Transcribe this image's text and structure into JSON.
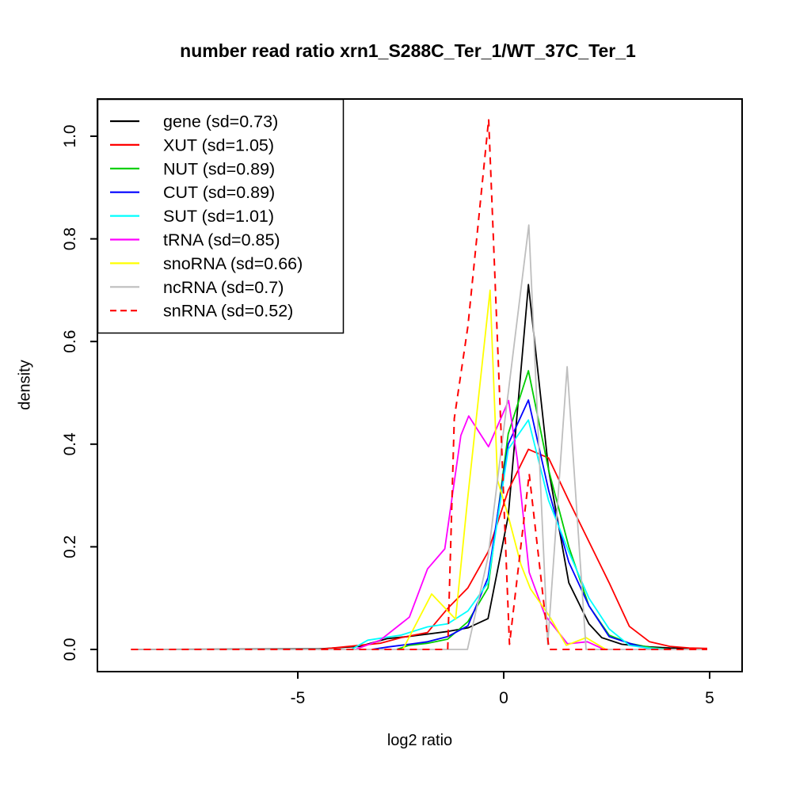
{
  "chart_data": {
    "type": "line",
    "title": "number read ratio xrn1_S288C_Ter_1/WT_37C_Ter_1",
    "xlabel": "log2 ratio",
    "ylabel": "density",
    "xlim": [
      -9.9,
      5.8
    ],
    "ylim": [
      0,
      1.07
    ],
    "x_ticks": [
      "-5",
      "0",
      "5"
    ],
    "y_ticks": [
      "0.0",
      "0.2",
      "0.4",
      "0.6",
      "0.8",
      "1.0"
    ],
    "grid": false,
    "legend_position": "top-left",
    "series": [
      {
        "name": "gene",
        "label": "gene (sd=0.73)",
        "sd": 0.73,
        "color": "#000000",
        "style": "solid",
        "points": [
          [
            -9.05,
            0
          ],
          [
            -4.5,
            0.001
          ],
          [
            -3.5,
            0.006
          ],
          [
            -2.83,
            0.021
          ],
          [
            -2.34,
            0.025
          ],
          [
            -1.85,
            0.03
          ],
          [
            -1.36,
            0.035
          ],
          [
            -0.87,
            0.042
          ],
          [
            -0.38,
            0.06
          ],
          [
            0.11,
            0.26
          ],
          [
            0.6,
            0.711
          ],
          [
            1.09,
            0.35
          ],
          [
            1.58,
            0.13
          ],
          [
            2.07,
            0.05
          ],
          [
            2.38,
            0.023
          ],
          [
            2.87,
            0.01
          ],
          [
            3.54,
            0.005
          ],
          [
            4.03,
            0.003
          ],
          [
            4.94,
            0.001
          ]
        ]
      },
      {
        "name": "XUT",
        "label": "XUT (sd=1.05)",
        "sd": 1.05,
        "color": "#ff0000",
        "style": "solid",
        "points": [
          [
            -4.5,
            0
          ],
          [
            -3.5,
            0.008
          ],
          [
            -3.0,
            0.012
          ],
          [
            -2.49,
            0.023
          ],
          [
            -1.85,
            0.033
          ],
          [
            -1.36,
            0.08
          ],
          [
            -0.87,
            0.12
          ],
          [
            -0.38,
            0.19
          ],
          [
            0.11,
            0.31
          ],
          [
            0.6,
            0.39
          ],
          [
            1.09,
            0.373
          ],
          [
            1.58,
            0.29
          ],
          [
            2.07,
            0.21
          ],
          [
            2.56,
            0.13
          ],
          [
            3.05,
            0.045
          ],
          [
            3.54,
            0.015
          ],
          [
            4.03,
            0.006
          ],
          [
            4.5,
            0.003
          ],
          [
            4.94,
            0.002
          ]
        ]
      },
      {
        "name": "NUT",
        "label": "NUT (sd=0.89)",
        "sd": 0.89,
        "color": "#00cd00",
        "style": "solid",
        "points": [
          [
            -2.6,
            0
          ],
          [
            -2.3,
            0.008
          ],
          [
            -1.85,
            0.012
          ],
          [
            -1.36,
            0.02
          ],
          [
            -0.87,
            0.054
          ],
          [
            -0.38,
            0.12
          ],
          [
            0.11,
            0.42
          ],
          [
            0.6,
            0.543
          ],
          [
            1.09,
            0.35
          ],
          [
            1.58,
            0.2
          ],
          [
            2.07,
            0.085
          ],
          [
            2.56,
            0.028
          ],
          [
            3.05,
            0.012
          ],
          [
            3.54,
            0.004
          ],
          [
            4.0,
            0
          ]
        ]
      },
      {
        "name": "CUT",
        "label": "CUT (sd=0.89)",
        "sd": 0.89,
        "color": "#0000ff",
        "style": "solid",
        "points": [
          [
            -3.2,
            0
          ],
          [
            -2.8,
            0.005
          ],
          [
            -2.3,
            0.01
          ],
          [
            -1.85,
            0.015
          ],
          [
            -1.36,
            0.025
          ],
          [
            -0.87,
            0.046
          ],
          [
            -0.38,
            0.14
          ],
          [
            0.11,
            0.4
          ],
          [
            0.6,
            0.486
          ],
          [
            1.09,
            0.31
          ],
          [
            1.58,
            0.17
          ],
          [
            2.07,
            0.085
          ],
          [
            2.56,
            0.025
          ],
          [
            3.05,
            0.012
          ],
          [
            3.6,
            0
          ]
        ]
      },
      {
        "name": "SUT",
        "label": "SUT (sd=1.01)",
        "sd": 1.01,
        "color": "#00ffff",
        "style": "solid",
        "points": [
          [
            -3.7,
            0
          ],
          [
            -3.3,
            0.018
          ],
          [
            -2.49,
            0.028
          ],
          [
            -1.85,
            0.044
          ],
          [
            -1.36,
            0.05
          ],
          [
            -0.87,
            0.075
          ],
          [
            -0.38,
            0.13
          ],
          [
            0.11,
            0.39
          ],
          [
            0.6,
            0.447
          ],
          [
            1.09,
            0.29
          ],
          [
            1.58,
            0.19
          ],
          [
            2.07,
            0.1
          ],
          [
            2.56,
            0.04
          ],
          [
            3.05,
            0.008
          ],
          [
            3.5,
            0.003
          ],
          [
            4.0,
            0
          ]
        ]
      },
      {
        "name": "tRNA",
        "label": "tRNA (sd=0.85)",
        "sd": 0.85,
        "color": "#ff00ff",
        "style": "solid",
        "points": [
          [
            -3.6,
            0
          ],
          [
            -3.0,
            0.018
          ],
          [
            -2.29,
            0.063
          ],
          [
            -1.85,
            0.157
          ],
          [
            -1.43,
            0.196
          ],
          [
            -1.04,
            0.417
          ],
          [
            -0.85,
            0.455
          ],
          [
            -0.37,
            0.395
          ],
          [
            0.12,
            0.485
          ],
          [
            0.33,
            0.37
          ],
          [
            0.62,
            0.15
          ],
          [
            1.0,
            0.067
          ],
          [
            1.55,
            0.011
          ],
          [
            2.03,
            0.015
          ],
          [
            2.44,
            0
          ]
        ]
      },
      {
        "name": "snoRNA",
        "label": "snoRNA (sd=0.66)",
        "sd": 0.66,
        "color": "#ffff00",
        "style": "solid",
        "points": [
          [
            -2.45,
            0
          ],
          [
            -1.75,
            0.108
          ],
          [
            -1.17,
            0.059
          ],
          [
            -0.88,
            0.29
          ],
          [
            -0.33,
            0.7
          ],
          [
            -0.15,
            0.33
          ],
          [
            0.11,
            0.26
          ],
          [
            0.42,
            0.165
          ],
          [
            0.65,
            0.118
          ],
          [
            1.1,
            0.066
          ],
          [
            1.52,
            0.008
          ],
          [
            2.0,
            0.023
          ],
          [
            2.48,
            0
          ]
        ]
      },
      {
        "name": "ncRNA",
        "label": "ncRNA (sd=0.7)",
        "sd": 0.7,
        "color": "#bebebe",
        "style": "solid",
        "points": [
          [
            -9.05,
            0
          ],
          [
            -0.88,
            0
          ],
          [
            -0.38,
            0.18
          ],
          [
            0.11,
            0.5
          ],
          [
            0.61,
            0.827
          ],
          [
            1.07,
            0.01
          ],
          [
            1.54,
            0.551
          ],
          [
            2.0,
            0
          ],
          [
            4.94,
            0
          ]
        ]
      },
      {
        "name": "snRNA",
        "label": "snRNA (sd=0.52)",
        "sd": 0.52,
        "color": "#ff0000",
        "style": "dashed",
        "points": [
          [
            -9.05,
            0
          ],
          [
            -1.36,
            0
          ],
          [
            -1.2,
            0.45
          ],
          [
            -0.87,
            0.63
          ],
          [
            -0.365,
            1.033
          ],
          [
            0.14,
            0.01
          ],
          [
            0.62,
            0.342
          ],
          [
            1.1,
            0
          ],
          [
            4.94,
            0
          ]
        ]
      }
    ]
  }
}
